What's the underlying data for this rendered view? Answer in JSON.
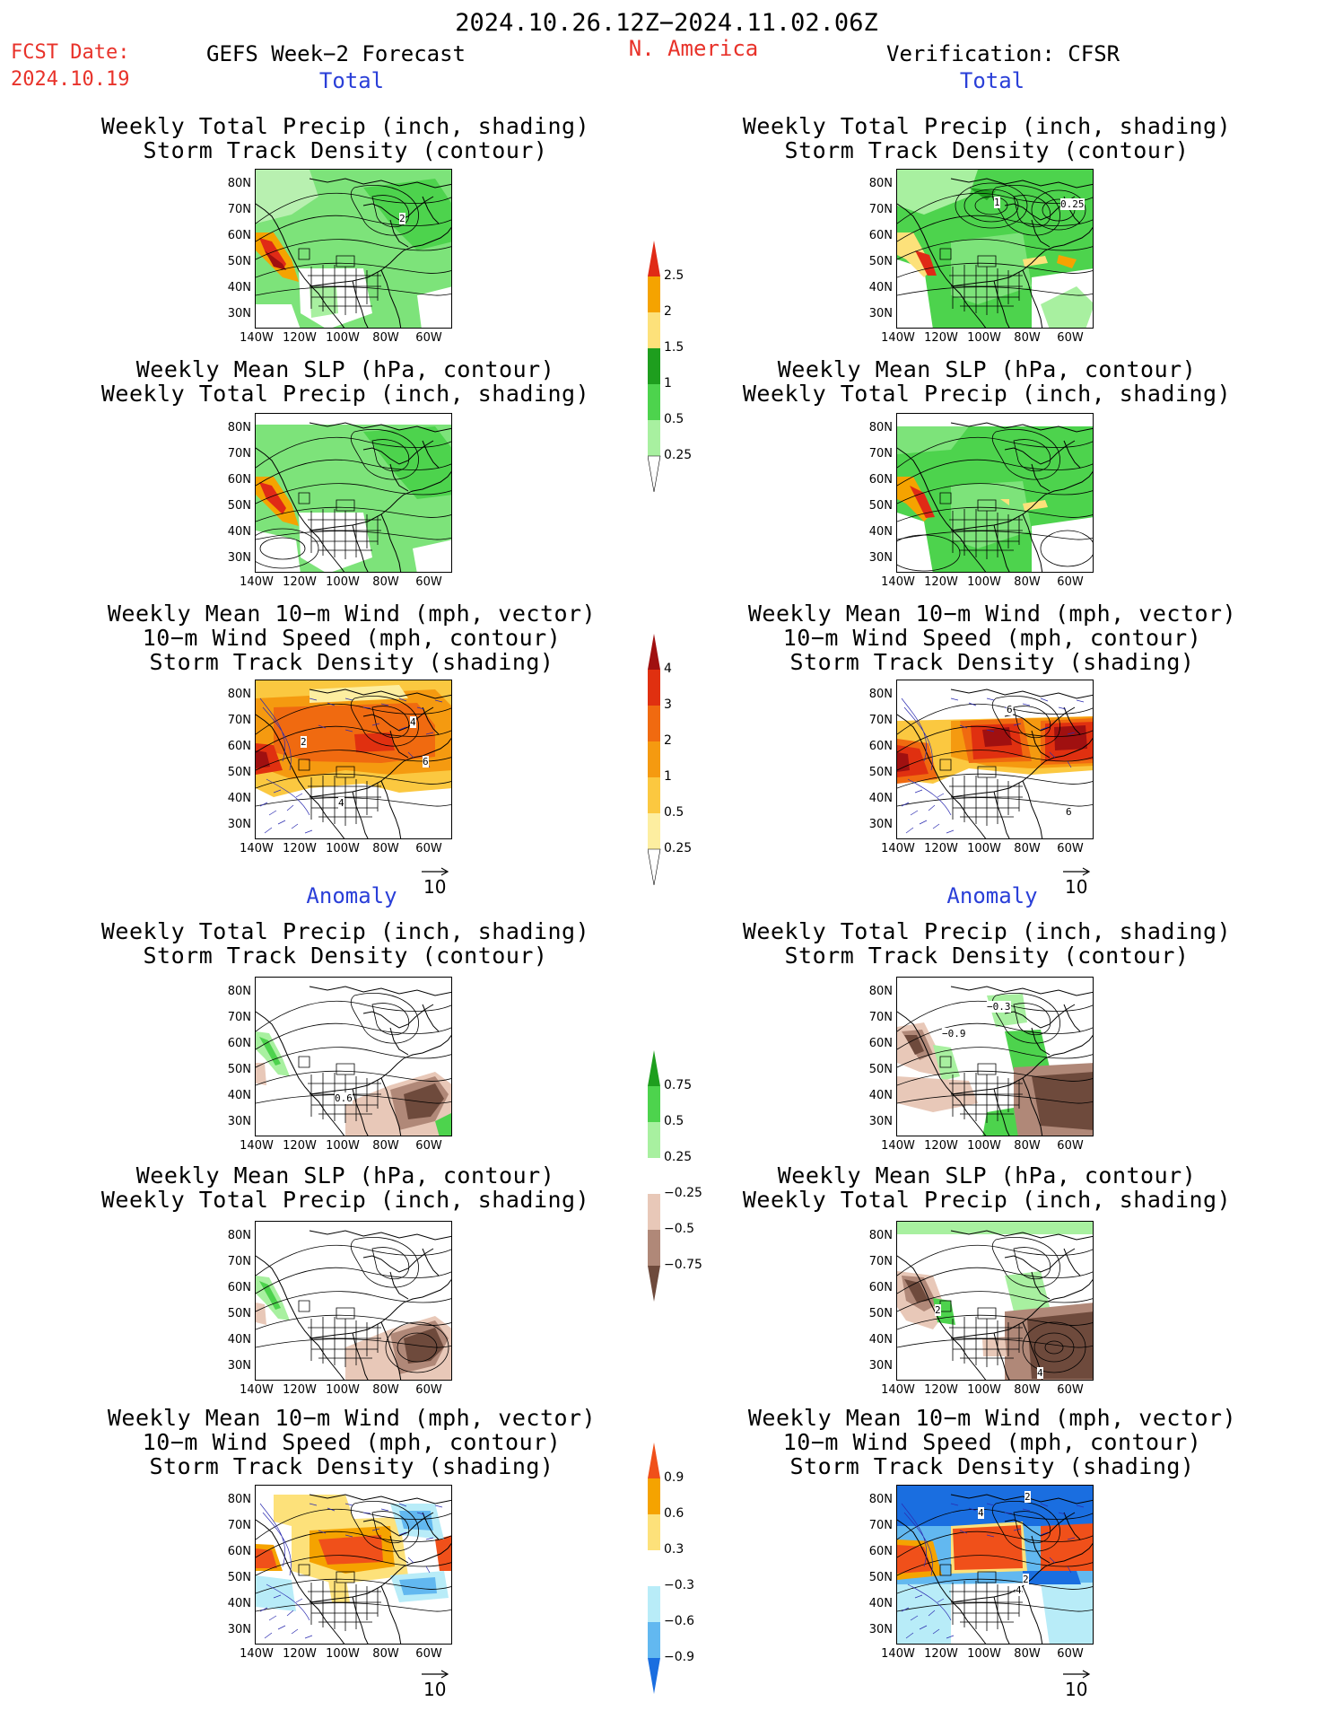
{
  "header": {
    "period": "2024.10.26.12Z−2024.11.02.06Z",
    "fcst_label": "FCST Date:",
    "fcst_date": "2024.10.19",
    "left_title": "GEFS Week−2 Forecast",
    "region": "N. America",
    "right_title": "Verification: CFSR"
  },
  "sections": {
    "total": "Total",
    "anomaly": "Anomaly"
  },
  "panel_titles": {
    "precip_track": [
      "Weekly Total Precip (inch, shading)",
      "Storm Track Density (contour)"
    ],
    "slp_precip": [
      "Weekly Mean SLP (hPa, contour)",
      "Weekly Total Precip (inch, shading)"
    ],
    "wind_track": [
      "Weekly Mean 10−m Wind (mph, vector)",
      "10−m Wind Speed (mph, contour)",
      "Storm Track Density (shading)"
    ]
  },
  "lat_labels": [
    "80N",
    "70N",
    "60N",
    "50N",
    "40N",
    "30N"
  ],
  "lon_labels": [
    "140W",
    "120W",
    "100W",
    "80W",
    "60W"
  ],
  "vector_ref": "10",
  "colorbars": {
    "precip_total": {
      "labels": [
        "2.5",
        "2",
        "1.5",
        "1",
        "0.5",
        "0.25"
      ],
      "colors": [
        "#e02a16",
        "#f5a300",
        "#fde17a",
        "#1e9e1e",
        "#4dd34d",
        "#a8f0a0"
      ]
    },
    "track_total": {
      "labels": [
        "4",
        "3",
        "2",
        "1",
        "0.5",
        "0.25"
      ],
      "colors": [
        "#a01010",
        "#e03010",
        "#f06a10",
        "#f59a10",
        "#fbc840",
        "#fdeea0"
      ]
    },
    "precip_anom": {
      "labels": [
        "0.75",
        "0.5",
        "0.25",
        "−0.25",
        "−0.5",
        "−0.75"
      ],
      "colors": [
        "#1e9e1e",
        "#4dd34d",
        "#a8f0a0",
        "#ffffff",
        "#e8c8b8",
        "#b08878",
        "#6e4a3c"
      ]
    },
    "track_anom": {
      "labels": [
        "0.9",
        "0.6",
        "0.3",
        "−0.3",
        "−0.6",
        "−0.9"
      ],
      "colors": [
        "#f0501a",
        "#f5a300",
        "#fde17a",
        "#ffffff",
        "#b8ecf8",
        "#62b8f0",
        "#1a6ee0"
      ]
    }
  },
  "contour_labels": {
    "p1_left": "2",
    "p1_right_a": "1",
    "p1_right_b": "0.25",
    "p3_left_a": "4",
    "p3_left_b": "2",
    "p3_left_c": "6",
    "p3_left_d": "4",
    "p3_right_a": "6",
    "p3_right_b": "6",
    "p4_left": "0.6",
    "p4_right_a": "−0.3",
    "p4_right_b": "−0.9",
    "p5_right_a": "2",
    "p5_right_b": "4",
    "p6_right_a": "2",
    "p6_right_b": "4",
    "p6_right_c": "2",
    "p6_right_d": "4"
  }
}
